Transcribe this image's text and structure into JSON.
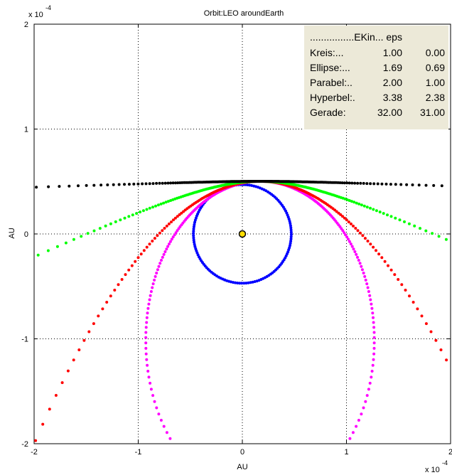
{
  "chart_data": {
    "type": "scatter",
    "title": "Orbit:LEO aroundEarth",
    "xlabel": "AU",
    "ylabel": "AU",
    "x_exponent_label": "x 10",
    "x_exponent_power": "-4",
    "y_exponent_label": "x 10",
    "y_exponent_power": "-4",
    "xlim": [
      -2,
      2
    ],
    "ylim": [
      -2,
      2
    ],
    "xticks": [
      -2,
      -1,
      0,
      1,
      2
    ],
    "yticks": [
      -2,
      -1,
      0,
      1,
      2
    ],
    "xtick_labels": [
      "-2",
      "-1",
      "0",
      "1",
      "2"
    ],
    "ytick_labels": [
      "-2",
      "-1",
      "0",
      "1",
      "2"
    ],
    "grid": true,
    "central_body": {
      "x": 0,
      "y": 0,
      "color": "#ffdd00"
    },
    "orbit_params": {
      "periapsis": [
        0.0,
        0.47
      ],
      "rp": 0.47,
      "tangent_rotation_deg": -21.2
    },
    "series": [
      {
        "key": "circle",
        "color": "#0000ff",
        "e": 0.0
      },
      {
        "key": "ellipse",
        "color": "#ff00ff",
        "e": 0.69
      },
      {
        "key": "parabola",
        "color": "#ff0000",
        "e": 1.0
      },
      {
        "key": "hyperbola",
        "color": "#00ff00",
        "e": 2.38
      },
      {
        "key": "line",
        "color": "#000000",
        "e": 31.0
      }
    ],
    "legend": {
      "placement": "top-right",
      "header": "................EKin... eps",
      "rows": [
        {
          "label": "Kreis:...",
          "ekin": "1.00",
          "eps": "0.00"
        },
        {
          "label": "Ellipse:...",
          "ekin": "1.69",
          "eps": "0.69"
        },
        {
          "label": "Parabel:..",
          "ekin": "2.00",
          "eps": "1.00"
        },
        {
          "label": "Hyperbel:.",
          "ekin": "3.38",
          "eps": "2.38"
        },
        {
          "label": "Gerade:",
          "ekin": "32.00",
          "eps": "31.00"
        }
      ],
      "background": "#ece9d8"
    }
  }
}
